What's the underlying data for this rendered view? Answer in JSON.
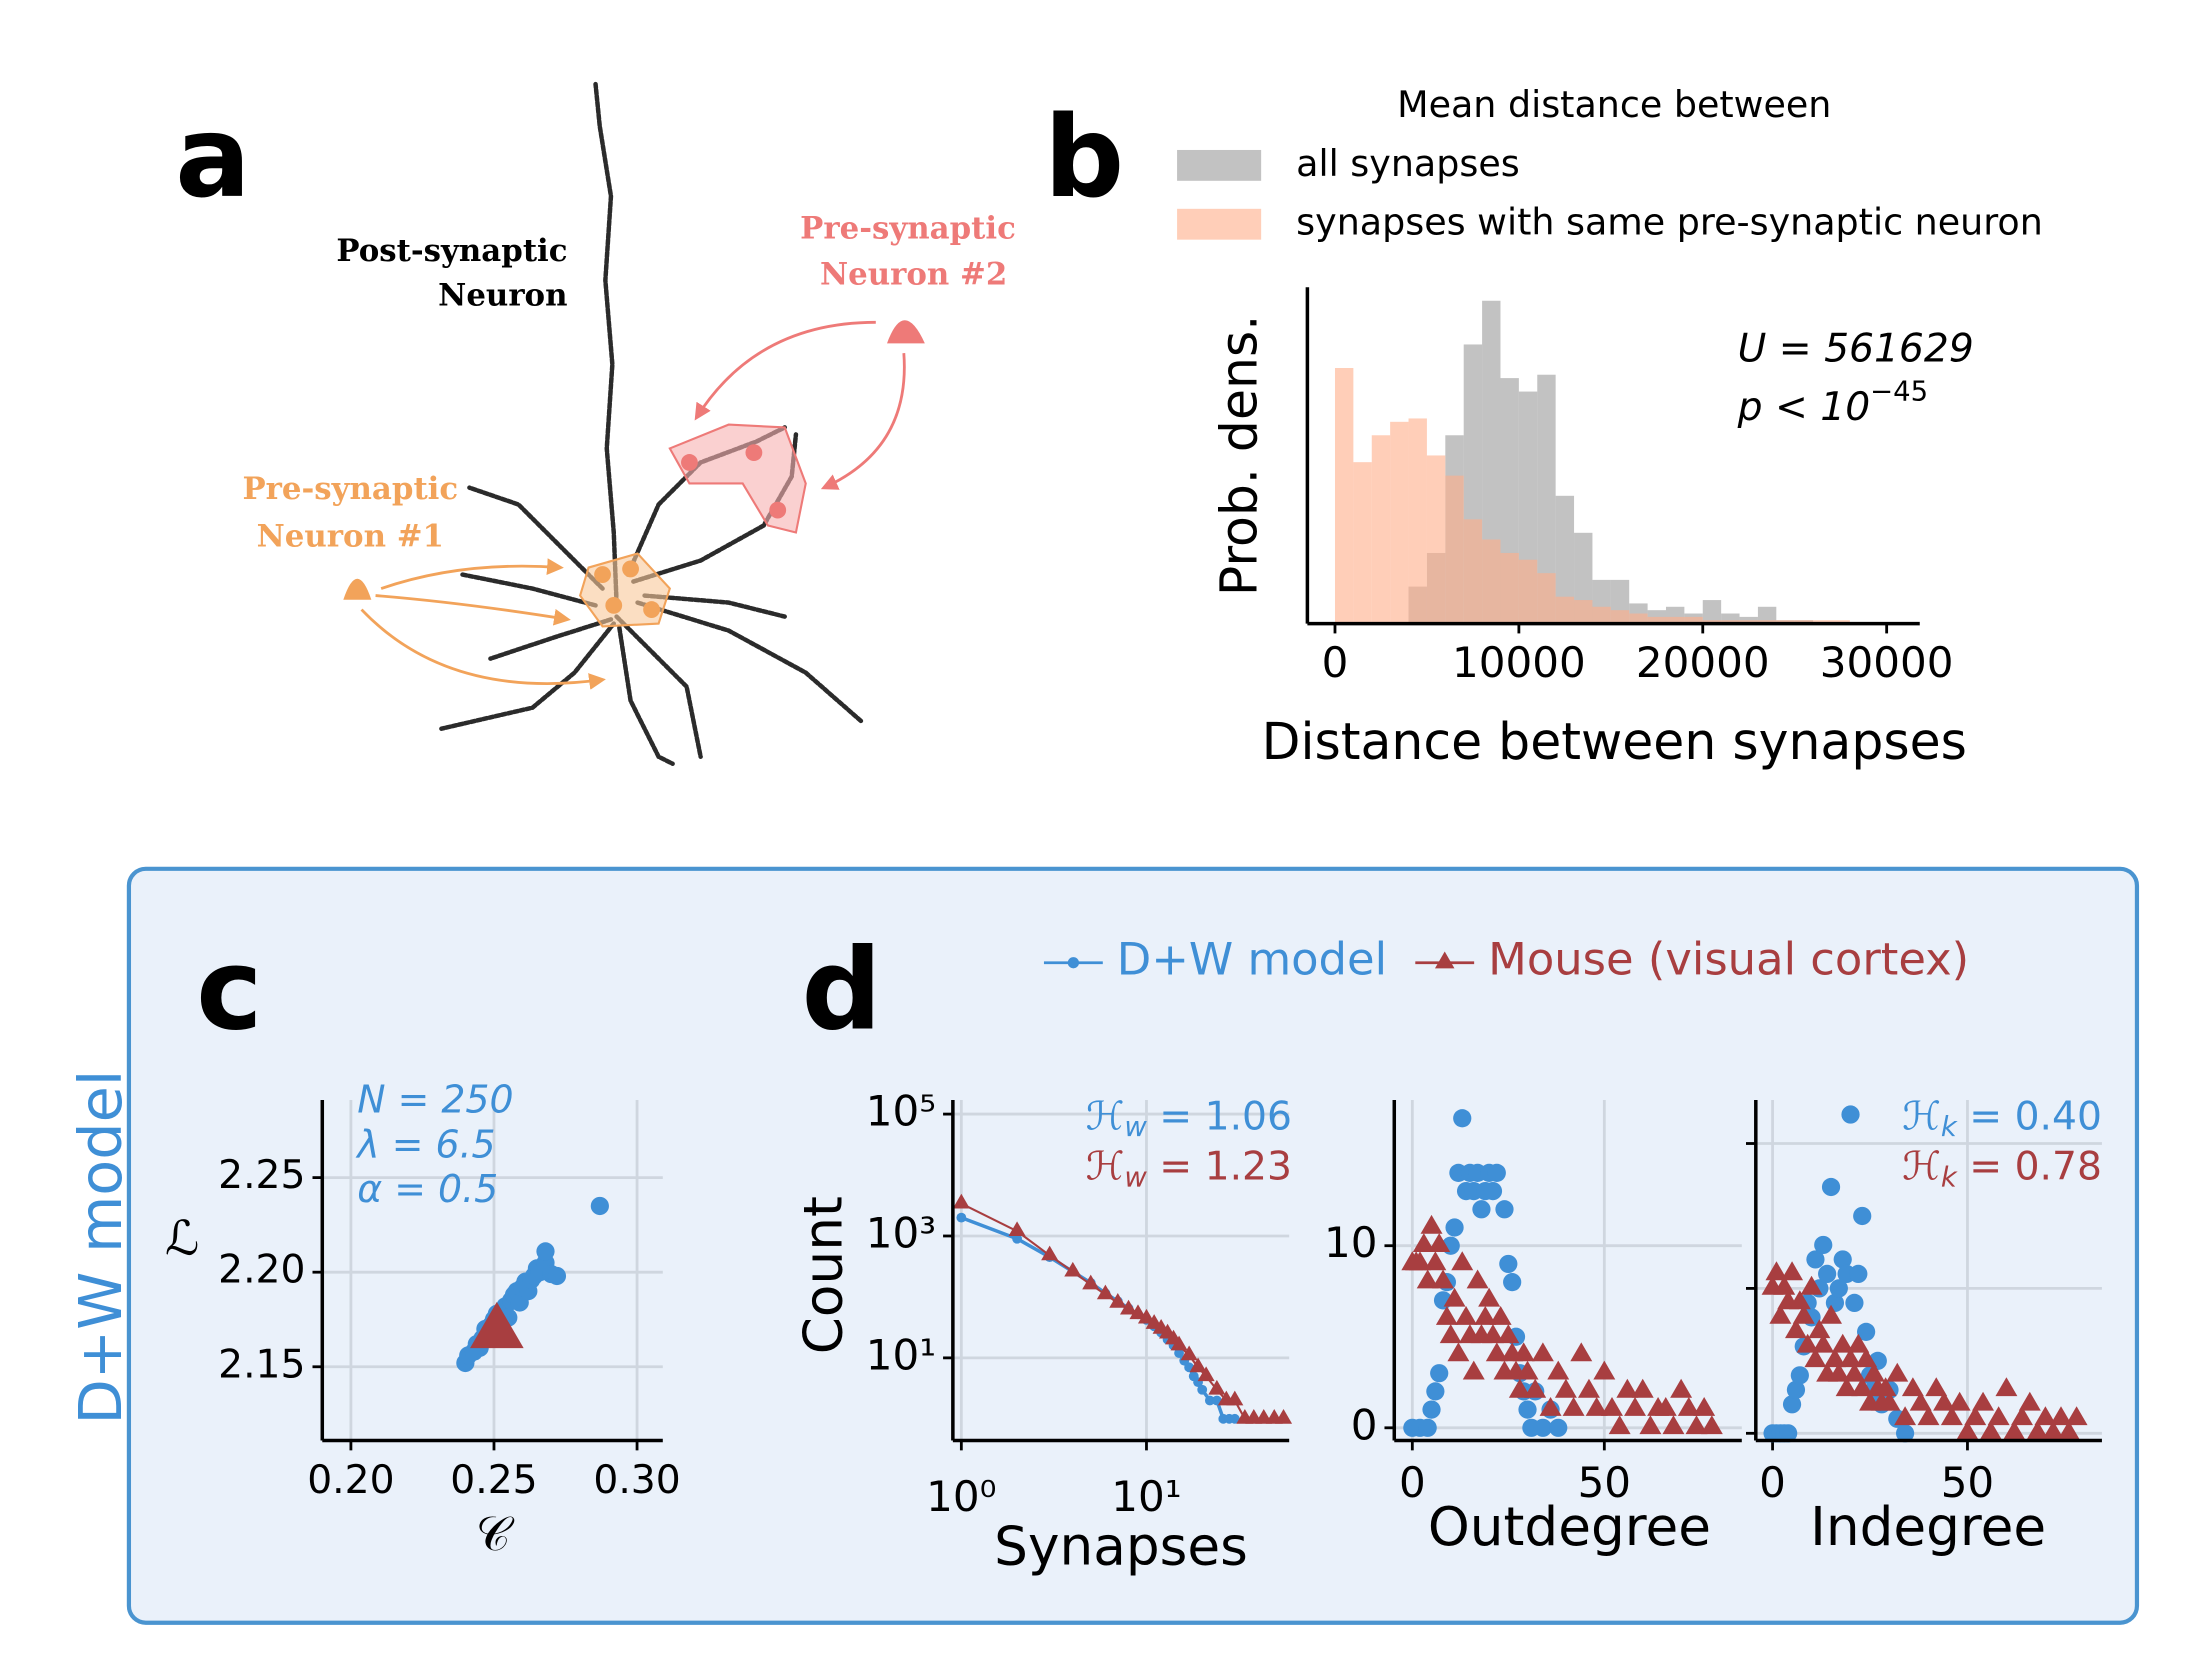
{
  "figure": {
    "panel_labels": [
      "a",
      "b",
      "c",
      "d"
    ],
    "box_label": "D+W model",
    "diagram": {
      "post_synaptic": [
        "Post-synaptic",
        "Neuron"
      ],
      "pre_synaptic_2": [
        "Pre-synaptic",
        "Neuron #2"
      ],
      "pre_synaptic_1": [
        "Pre-synaptic",
        "Neuron #1"
      ]
    }
  },
  "chart_data": [
    {
      "type": "histogram",
      "xlabel": "Distance between synapses",
      "ylabel": "Prob. dens.",
      "legend_title": "Mean distance between",
      "alpha": 0.6,
      "bins": [
        0,
        1000,
        2000,
        3000,
        4000,
        5000,
        6000,
        7000,
        8000,
        9000,
        10000,
        11000,
        12000,
        13000,
        14000,
        15000,
        16000,
        17000,
        18000,
        19000,
        20000,
        21000,
        22000,
        23000,
        24000,
        25000,
        26000,
        27000,
        28000
      ],
      "series": [
        {
          "name": "all synapses",
          "color": "#9a9a9a",
          "values": [
            0,
            0,
            0,
            0,
            0.11,
            0.21,
            0.56,
            0.83,
            0.96,
            0.73,
            0.69,
            0.74,
            0.38,
            0.27,
            0.13,
            0.13,
            0.06,
            0.04,
            0.05,
            0.03,
            0.07,
            0.03,
            0.02,
            0.05,
            0.01,
            0.01,
            0,
            0
          ]
        },
        {
          "name": "synapses with same pre-synaptic neuron",
          "color": "#ffae88",
          "values": [
            0.76,
            0.48,
            0.56,
            0.6,
            0.61,
            0.5,
            0.44,
            0.31,
            0.25,
            0.21,
            0.19,
            0.15,
            0.08,
            0.07,
            0.05,
            0.04,
            0.03,
            0.02,
            0.02,
            0.02,
            0.01,
            0.01,
            0.01,
            0.01,
            0.01,
            0.01,
            0.01,
            0.01
          ]
        }
      ],
      "xlim": [
        -1500,
        31800
      ],
      "xticks": [
        0,
        10000,
        20000,
        30000
      ],
      "ylim": [
        0,
        1
      ],
      "grid": false,
      "annotations": [
        {
          "text": "U = 561629"
        },
        {
          "text": "p < 10",
          "superscript": "−45"
        }
      ]
    },
    {
      "type": "scatter",
      "xlabel": "𝒞",
      "ylabel": "ℒ",
      "grid": true,
      "xlim": [
        0.19,
        0.309
      ],
      "ylim": [
        2.111,
        2.291
      ],
      "xticks": [
        {
          "value": 0.2,
          "label": "0.20"
        },
        0.25,
        {
          "value": 0.3,
          "label": "0.30"
        }
      ],
      "yticks": [
        2.15,
        {
          "value": 2.2,
          "label": "2.20"
        },
        2.25
      ],
      "series": [
        {
          "color": "#3f8fd6",
          "marker": "circle",
          "x": [
            0.24,
            0.241,
            0.243,
            0.244,
            0.245,
            0.246,
            0.247,
            0.248,
            0.249,
            0.25,
            0.251,
            0.252,
            0.253,
            0.254,
            0.255,
            0.256,
            0.257,
            0.258,
            0.259,
            0.26,
            0.261,
            0.262,
            0.263,
            0.264,
            0.265,
            0.266,
            0.268,
            0.27,
            0.272,
            0.268,
            0.287
          ],
          "values": [
            2.152,
            2.156,
            2.158,
            2.162,
            2.16,
            2.165,
            2.17,
            2.168,
            2.172,
            2.175,
            2.178,
            2.174,
            2.18,
            2.182,
            2.176,
            2.185,
            2.188,
            2.19,
            2.184,
            2.192,
            2.195,
            2.19,
            2.196,
            2.198,
            2.202,
            2.2,
            2.205,
            2.199,
            2.198,
            2.211,
            2.235
          ]
        },
        {
          "color": "#a83e40",
          "marker": "triangle",
          "size": 22,
          "x": [
            0.251
          ],
          "values": [
            2.168
          ]
        }
      ],
      "annotations": [
        {
          "text": "N = 250",
          "color": "#3f8fd6"
        },
        {
          "text": "λ = 6.5",
          "color": "#3f8fd6"
        },
        {
          "text": "α = 0.5",
          "color": "#3f8fd6"
        }
      ]
    },
    {
      "type": "line",
      "xlabel": "Synapses",
      "ylabel": "Count",
      "xlog": true,
      "ylog": true,
      "grid": true,
      "xlim": [
        0.9,
        59
      ],
      "ylim": [
        0.44,
        170000
      ],
      "xticks": [
        {
          "value": 1,
          "label": "10⁰"
        },
        {
          "value": 10,
          "label": "10¹"
        }
      ],
      "yticks": [
        {
          "value": 10,
          "label": "10¹"
        },
        {
          "value": 1000,
          "label": "10³"
        },
        {
          "value": 100000,
          "label": "10⁵"
        }
      ],
      "series": [
        {
          "name": "D+W model",
          "color": "#3f8fd6",
          "marker": "circle",
          "x": [
            1,
            2,
            3,
            4,
            5,
            6,
            7,
            8,
            9,
            10,
            11,
            12,
            13,
            14,
            15,
            16,
            17,
            18,
            19,
            20,
            22,
            24,
            26,
            28,
            30
          ],
          "values": [
            2000,
            900,
            450,
            260,
            170,
            115,
            85,
            65,
            52,
            42,
            33,
            26,
            20,
            16,
            12,
            9,
            7,
            5,
            4,
            3,
            2,
            2,
            1,
            1,
            1
          ]
        },
        {
          "name": "Mouse (visual cortex)",
          "color": "#a83e40",
          "marker": "triangle",
          "x": [
            1,
            2,
            3,
            4,
            5,
            6,
            7,
            8,
            9,
            10,
            11,
            12,
            13,
            14,
            15,
            17,
            19,
            21,
            24,
            27,
            30,
            34,
            38,
            43,
            49,
            55
          ],
          "values": [
            3400,
            1200,
            480,
            260,
            160,
            110,
            80,
            62,
            52,
            44,
            36,
            30,
            25,
            20,
            16,
            11,
            7,
            5,
            3,
            2,
            2,
            1,
            1,
            1,
            1,
            1
          ]
        }
      ],
      "annotations": [
        {
          "symbol": "ℋ",
          "subscript": "w",
          "rest": " = 1.06",
          "color": "#3f8fd6"
        },
        {
          "symbol": "ℋ",
          "subscript": "w",
          "rest": " = 1.23",
          "color": "#a83e40"
        }
      ]
    },
    {
      "type": "scatter",
      "xlabel": "Outdegree",
      "grid": true,
      "xlim": [
        -4.7,
        85.8
      ],
      "ylim": [
        -0.7,
        18
      ],
      "xticks": [
        0,
        50
      ],
      "yticks": [
        0,
        10
      ],
      "series": [
        {
          "color": "#3f8fd6",
          "marker": "circle",
          "x": [
            0,
            2,
            4,
            5,
            6,
            7,
            8,
            9,
            10,
            11,
            12,
            13,
            14,
            15,
            16,
            17,
            18,
            19,
            20,
            21,
            22,
            24,
            25,
            26,
            27,
            28,
            29,
            30,
            31,
            32,
            34,
            36,
            38
          ],
          "values": [
            0,
            0,
            0,
            1,
            2,
            3,
            7,
            8,
            10,
            11,
            14,
            17,
            13,
            14,
            13,
            14,
            12,
            13,
            14,
            13,
            14,
            12,
            9,
            8,
            5,
            3,
            2,
            1,
            0,
            2,
            0,
            1,
            0
          ]
        },
        {
          "color": "#a83e40",
          "marker": "triangle",
          "x": [
            0,
            1,
            2,
            3,
            4,
            5,
            6,
            7,
            8,
            9,
            10,
            11,
            12,
            13,
            14,
            15,
            16,
            17,
            18,
            19,
            20,
            21,
            22,
            23,
            24,
            25,
            26,
            27,
            28,
            29,
            30,
            32,
            34,
            36,
            38,
            40,
            42,
            44,
            46,
            48,
            50,
            52,
            54,
            56,
            58,
            60,
            62,
            64,
            66,
            68,
            70,
            72,
            74,
            76,
            78
          ],
          "values": [
            9,
            9,
            9,
            10,
            8,
            11,
            9,
            10,
            8,
            6,
            5,
            7,
            4,
            9,
            6,
            5,
            3,
            8,
            5,
            6,
            7,
            5,
            4,
            6,
            3,
            5,
            4,
            3,
            2,
            4,
            3,
            2,
            4,
            1,
            3,
            2,
            1,
            4,
            2,
            1,
            3,
            1,
            0,
            2,
            1,
            2,
            0,
            1,
            1,
            0,
            2,
            1,
            0,
            1,
            0
          ]
        }
      ]
    },
    {
      "type": "scatter",
      "xlabel": "Indegree",
      "grid": true,
      "ytick_labels": false,
      "xlim": [
        -4.3,
        84.5
      ],
      "ylim": [
        -0.5,
        23
      ],
      "xticks": [
        0,
        50
      ],
      "yticks": [
        0,
        10,
        20
      ],
      "series": [
        {
          "color": "#3f8fd6",
          "marker": "circle",
          "x": [
            0,
            1,
            2,
            3,
            4,
            5,
            6,
            7,
            8,
            9,
            10,
            11,
            12,
            13,
            14,
            15,
            16,
            17,
            18,
            19,
            20,
            21,
            22,
            23,
            24,
            25,
            26,
            27,
            28,
            30,
            32,
            34
          ],
          "values": [
            0,
            0,
            0,
            0,
            0,
            2,
            3,
            4,
            6,
            9,
            8,
            12,
            10,
            13,
            11,
            17,
            9,
            10,
            12,
            11,
            22,
            9,
            11,
            15,
            7,
            4,
            3,
            5,
            2,
            3,
            1,
            0
          ]
        },
        {
          "color": "#a83e40",
          "marker": "triangle",
          "x": [
            0,
            1,
            2,
            3,
            4,
            5,
            6,
            7,
            8,
            9,
            10,
            11,
            12,
            13,
            14,
            15,
            16,
            17,
            18,
            19,
            20,
            21,
            22,
            23,
            24,
            25,
            26,
            27,
            28,
            29,
            30,
            32,
            34,
            36,
            38,
            40,
            42,
            44,
            46,
            48,
            50,
            52,
            54,
            56,
            58,
            60,
            62,
            64,
            66,
            68,
            70,
            72,
            74,
            76,
            78
          ],
          "values": [
            10,
            11,
            8,
            10,
            9,
            11,
            7,
            9,
            8,
            6,
            10,
            5,
            7,
            6,
            4,
            8,
            5,
            4,
            6,
            3,
            5,
            4,
            6,
            3,
            5,
            2,
            4,
            3,
            2,
            3,
            2,
            4,
            1,
            3,
            2,
            1,
            3,
            2,
            1,
            2,
            0,
            1,
            2,
            0,
            1,
            3,
            0,
            1,
            2,
            0,
            1,
            0,
            1,
            0,
            1
          ]
        }
      ],
      "annotations": [
        {
          "symbol": "ℋ",
          "subscript": "k",
          "rest": " = 0.40",
          "color": "#3f8fd6"
        },
        {
          "symbol": "ℋ",
          "subscript": "k",
          "rest": " = 0.78",
          "color": "#a83e40"
        }
      ]
    }
  ]
}
